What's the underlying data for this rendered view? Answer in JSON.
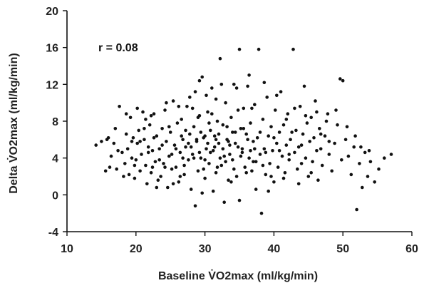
{
  "chart_data": {
    "type": "scatter",
    "title": "",
    "xlabel": "Baseline V̇O2max (ml/kg/min)",
    "ylabel": "Delta V̇O2max (ml/kg/min)",
    "xlim": [
      10,
      60
    ],
    "ylim": [
      -4,
      20
    ],
    "xticks": [
      10,
      20,
      30,
      40,
      50,
      60
    ],
    "yticks": [
      -4,
      0,
      4,
      8,
      12,
      16,
      20
    ],
    "xtick_labels": [
      "10",
      "20",
      "30",
      "40",
      "50",
      "60"
    ],
    "ytick_labels": [
      "-4",
      "0",
      "4",
      "8",
      "12",
      "16",
      "20"
    ],
    "annotation": "r = 0.08",
    "grid": false,
    "legend": "none",
    "point_color": "#111111",
    "points": [
      [
        14.2,
        5.4
      ],
      [
        15.0,
        5.8
      ],
      [
        15.8,
        6.0
      ],
      [
        15.6,
        2.6
      ],
      [
        16.2,
        3.0
      ],
      [
        16.4,
        4.2
      ],
      [
        16.8,
        5.6
      ],
      [
        17.2,
        2.8
      ],
      [
        17.0,
        7.2
      ],
      [
        17.6,
        9.6
      ],
      [
        18.0,
        4.6
      ],
      [
        18.4,
        3.4
      ],
      [
        18.6,
        6.6
      ],
      [
        18.8,
        5.0
      ],
      [
        19.0,
        2.2
      ],
      [
        19.2,
        8.4
      ],
      [
        19.4,
        4.0
      ],
      [
        19.6,
        6.2
      ],
      [
        19.8,
        1.8
      ],
      [
        20.0,
        3.8
      ],
      [
        20.2,
        5.6
      ],
      [
        20.4,
        7.0
      ],
      [
        20.6,
        2.6
      ],
      [
        20.8,
        4.4
      ],
      [
        21.0,
        9.0
      ],
      [
        21.2,
        6.0
      ],
      [
        21.4,
        3.2
      ],
      [
        21.6,
        1.2
      ],
      [
        21.8,
        5.2
      ],
      [
        22.0,
        7.6
      ],
      [
        22.2,
        2.4
      ],
      [
        22.4,
        4.8
      ],
      [
        22.6,
        8.8
      ],
      [
        22.8,
        3.6
      ],
      [
        23.0,
        6.4
      ],
      [
        23.2,
        1.6
      ],
      [
        23.4,
        5.0
      ],
      [
        23.6,
        2.0
      ],
      [
        23.8,
        7.2
      ],
      [
        24.0,
        3.4
      ],
      [
        24.2,
        9.2
      ],
      [
        24.4,
        5.8
      ],
      [
        24.6,
        0.8
      ],
      [
        24.8,
        4.2
      ],
      [
        25.0,
        6.8
      ],
      [
        25.2,
        2.8
      ],
      [
        25.4,
        10.2
      ],
      [
        25.6,
        5.4
      ],
      [
        25.8,
        3.0
      ],
      [
        26.0,
        7.8
      ],
      [
        26.2,
        1.4
      ],
      [
        26.4,
        4.6
      ],
      [
        26.6,
        8.2
      ],
      [
        26.8,
        6.0
      ],
      [
        27.0,
        2.2
      ],
      [
        27.2,
        5.2
      ],
      [
        27.4,
        9.6
      ],
      [
        27.6,
        3.8
      ],
      [
        27.8,
        6.6
      ],
      [
        28.0,
        0.6
      ],
      [
        28.2,
        4.4
      ],
      [
        28.4,
        7.4
      ],
      [
        28.6,
        11.2
      ],
      [
        28.8,
        5.8
      ],
      [
        29.0,
        2.6
      ],
      [
        29.2,
        8.6
      ],
      [
        29.4,
        4.0
      ],
      [
        29.6,
        12.8
      ],
      [
        29.8,
        6.2
      ],
      [
        30.0,
        1.8
      ],
      [
        30.2,
        5.0
      ],
      [
        30.4,
        9.0
      ],
      [
        30.6,
        3.4
      ],
      [
        30.8,
        7.0
      ],
      [
        31.0,
        11.6
      ],
      [
        31.2,
        4.8
      ],
      [
        31.4,
        6.4
      ],
      [
        31.6,
        2.4
      ],
      [
        31.8,
        8.0
      ],
      [
        32.0,
        5.6
      ],
      [
        32.2,
        14.8
      ],
      [
        32.4,
        3.2
      ],
      [
        32.6,
        7.6
      ],
      [
        32.8,
        4.2
      ],
      [
        33.0,
        10.0
      ],
      [
        33.2,
        6.0
      ],
      [
        33.4,
        1.6
      ],
      [
        33.6,
        5.4
      ],
      [
        33.8,
        8.4
      ],
      [
        34.0,
        3.8
      ],
      [
        34.2,
        12.0
      ],
      [
        34.4,
        6.8
      ],
      [
        34.6,
        2.0
      ],
      [
        34.8,
        5.2
      ],
      [
        35.0,
        15.8
      ],
      [
        35.2,
        7.2
      ],
      [
        35.4,
        4.6
      ],
      [
        35.6,
        9.4
      ],
      [
        35.8,
        3.0
      ],
      [
        36.0,
        6.6
      ],
      [
        36.2,
        11.8
      ],
      [
        36.4,
        4.0
      ],
      [
        36.6,
        7.8
      ],
      [
        36.8,
        2.6
      ],
      [
        37.0,
        5.8
      ],
      [
        37.2,
        9.8
      ],
      [
        37.4,
        3.6
      ],
      [
        37.6,
        6.2
      ],
      [
        37.8,
        15.8
      ],
      [
        38.0,
        4.4
      ],
      [
        38.2,
        -2.0
      ],
      [
        38.4,
        8.2
      ],
      [
        38.6,
        5.0
      ],
      [
        38.8,
        2.2
      ],
      [
        39.0,
        10.6
      ],
      [
        39.2,
        6.4
      ],
      [
        39.4,
        3.4
      ],
      [
        39.6,
        7.4
      ],
      [
        39.8,
        4.8
      ],
      [
        40.0,
        1.4
      ],
      [
        40.2,
        9.2
      ],
      [
        40.4,
        5.6
      ],
      [
        40.6,
        3.0
      ],
      [
        40.8,
        6.8
      ],
      [
        41.0,
        11.2
      ],
      [
        41.2,
        4.2
      ],
      [
        41.4,
        7.6
      ],
      [
        41.6,
        2.4
      ],
      [
        41.8,
        5.4
      ],
      [
        42.0,
        8.8
      ],
      [
        42.2,
        3.8
      ],
      [
        42.4,
        6.0
      ],
      [
        42.8,
        15.8
      ],
      [
        43.0,
        4.6
      ],
      [
        43.2,
        7.0
      ],
      [
        43.4,
        2.8
      ],
      [
        43.6,
        5.2
      ],
      [
        43.8,
        9.6
      ],
      [
        44.0,
        3.4
      ],
      [
        44.2,
        6.6
      ],
      [
        44.4,
        11.8
      ],
      [
        44.6,
        4.0
      ],
      [
        44.8,
        7.8
      ],
      [
        45.0,
        2.0
      ],
      [
        45.2,
        5.8
      ],
      [
        45.4,
        8.4
      ],
      [
        45.6,
        3.6
      ],
      [
        45.8,
        6.2
      ],
      [
        46.0,
        10.2
      ],
      [
        46.2,
        4.8
      ],
      [
        46.4,
        1.6
      ],
      [
        46.6,
        7.2
      ],
      [
        46.8,
        5.0
      ],
      [
        47.0,
        3.2
      ],
      [
        47.4,
        6.4
      ],
      [
        47.8,
        8.8
      ],
      [
        48.0,
        4.4
      ],
      [
        48.4,
        2.6
      ],
      [
        48.8,
        5.6
      ],
      [
        49.2,
        7.6
      ],
      [
        49.6,
        12.6
      ],
      [
        49.8,
        3.8
      ],
      [
        50.0,
        12.4
      ],
      [
        50.4,
        6.0
      ],
      [
        50.8,
        4.2
      ],
      [
        51.2,
        2.2
      ],
      [
        51.6,
        5.2
      ],
      [
        52.0,
        -1.6
      ],
      [
        52.4,
        3.4
      ],
      [
        52.8,
        0.8
      ],
      [
        53.2,
        4.6
      ],
      [
        53.6,
        2.0
      ],
      [
        54.0,
        3.6
      ],
      [
        54.6,
        1.4
      ],
      [
        55.2,
        2.8
      ],
      [
        56.0,
        4.0
      ],
      [
        57.0,
        4.4
      ],
      [
        31.4,
        5.2
      ],
      [
        29.4,
        6.8
      ],
      [
        33.6,
        4.4
      ],
      [
        30.6,
        7.8
      ],
      [
        28.4,
        4.0
      ],
      [
        32.0,
        6.6
      ],
      [
        30.0,
        3.8
      ],
      [
        34.4,
        5.6
      ],
      [
        29.0,
        8.4
      ],
      [
        31.8,
        3.0
      ],
      [
        27.6,
        5.6
      ],
      [
        33.2,
        7.4
      ],
      [
        30.8,
        4.6
      ],
      [
        28.8,
        6.0
      ],
      [
        32.6,
        5.0
      ],
      [
        29.8,
        2.8
      ],
      [
        31.0,
        8.8
      ],
      [
        27.2,
        7.0
      ],
      [
        34.0,
        6.8
      ],
      [
        30.4,
        5.6
      ],
      [
        26.8,
        4.0
      ],
      [
        33.0,
        3.6
      ],
      [
        28.2,
        9.4
      ],
      [
        35.4,
        5.0
      ],
      [
        31.6,
        10.4
      ],
      [
        24.8,
        7.4
      ],
      [
        22.6,
        6.2
      ],
      [
        23.4,
        3.8
      ],
      [
        21.8,
        4.6
      ],
      [
        20.6,
        5.8
      ],
      [
        25.8,
        5.0
      ],
      [
        26.4,
        2.0
      ],
      [
        24.2,
        3.0
      ],
      [
        36.8,
        9.4
      ],
      [
        38.0,
        6.8
      ],
      [
        37.0,
        3.6
      ],
      [
        36.2,
        6.0
      ],
      [
        35.6,
        7.2
      ],
      [
        39.6,
        2.0
      ],
      [
        40.8,
        4.8
      ],
      [
        42.6,
        6.8
      ],
      [
        44.0,
        5.4
      ],
      [
        45.4,
        2.4
      ],
      [
        46.8,
        6.6
      ],
      [
        48.0,
        5.8
      ],
      [
        43.6,
        1.2
      ],
      [
        41.4,
        1.8
      ],
      [
        19.8,
        3.2
      ],
      [
        18.2,
        2.0
      ],
      [
        17.4,
        4.8
      ],
      [
        16.0,
        6.2
      ],
      [
        23.0,
        0.8
      ],
      [
        25.4,
        1.2
      ],
      [
        27.0,
        3.2
      ],
      [
        29.6,
        0.2
      ],
      [
        31.2,
        0.4
      ],
      [
        33.8,
        1.4
      ],
      [
        35.0,
        -0.6
      ],
      [
        37.4,
        0.6
      ],
      [
        39.2,
        0.4
      ],
      [
        28.6,
        -1.2
      ],
      [
        32.8,
        -0.8
      ],
      [
        30.2,
        10.8
      ],
      [
        32.4,
        12.0
      ],
      [
        34.6,
        11.6
      ],
      [
        27.8,
        10.6
      ],
      [
        29.2,
        12.4
      ],
      [
        36.4,
        13.0
      ],
      [
        38.6,
        12.2
      ],
      [
        40.4,
        10.8
      ],
      [
        34.8,
        9.2
      ],
      [
        26.2,
        9.6
      ],
      [
        24.4,
        10.0
      ],
      [
        22.2,
        8.6
      ],
      [
        21.4,
        8.2
      ],
      [
        20.2,
        9.4
      ],
      [
        18.6,
        8.8
      ],
      [
        41.8,
        8.2
      ],
      [
        43.0,
        9.4
      ],
      [
        44.6,
        8.6
      ],
      [
        46.2,
        9.0
      ],
      [
        47.6,
        8.0
      ],
      [
        49.0,
        9.2
      ],
      [
        50.6,
        7.4
      ],
      [
        51.8,
        6.4
      ],
      [
        52.6,
        5.2
      ],
      [
        53.8,
        4.8
      ],
      [
        36.0,
        2.4
      ],
      [
        38.4,
        3.2
      ],
      [
        40.0,
        6.2
      ],
      [
        42.2,
        4.4
      ],
      [
        34.2,
        2.8
      ],
      [
        26.6,
        6.4
      ],
      [
        25.2,
        4.4
      ],
      [
        23.8,
        5.4
      ],
      [
        22.4,
        3.0
      ],
      [
        21.2,
        7.2
      ],
      [
        19.4,
        5.8
      ],
      [
        28.0,
        5.2
      ],
      [
        30.0,
        6.4
      ],
      [
        32.2,
        4.0
      ],
      [
        29.2,
        4.6
      ],
      [
        31.6,
        6.0
      ],
      [
        33.4,
        5.8
      ],
      [
        35.2,
        4.2
      ],
      [
        37.2,
        5.0
      ],
      [
        36.6,
        4.8
      ],
      [
        38.8,
        4.6
      ]
    ]
  }
}
